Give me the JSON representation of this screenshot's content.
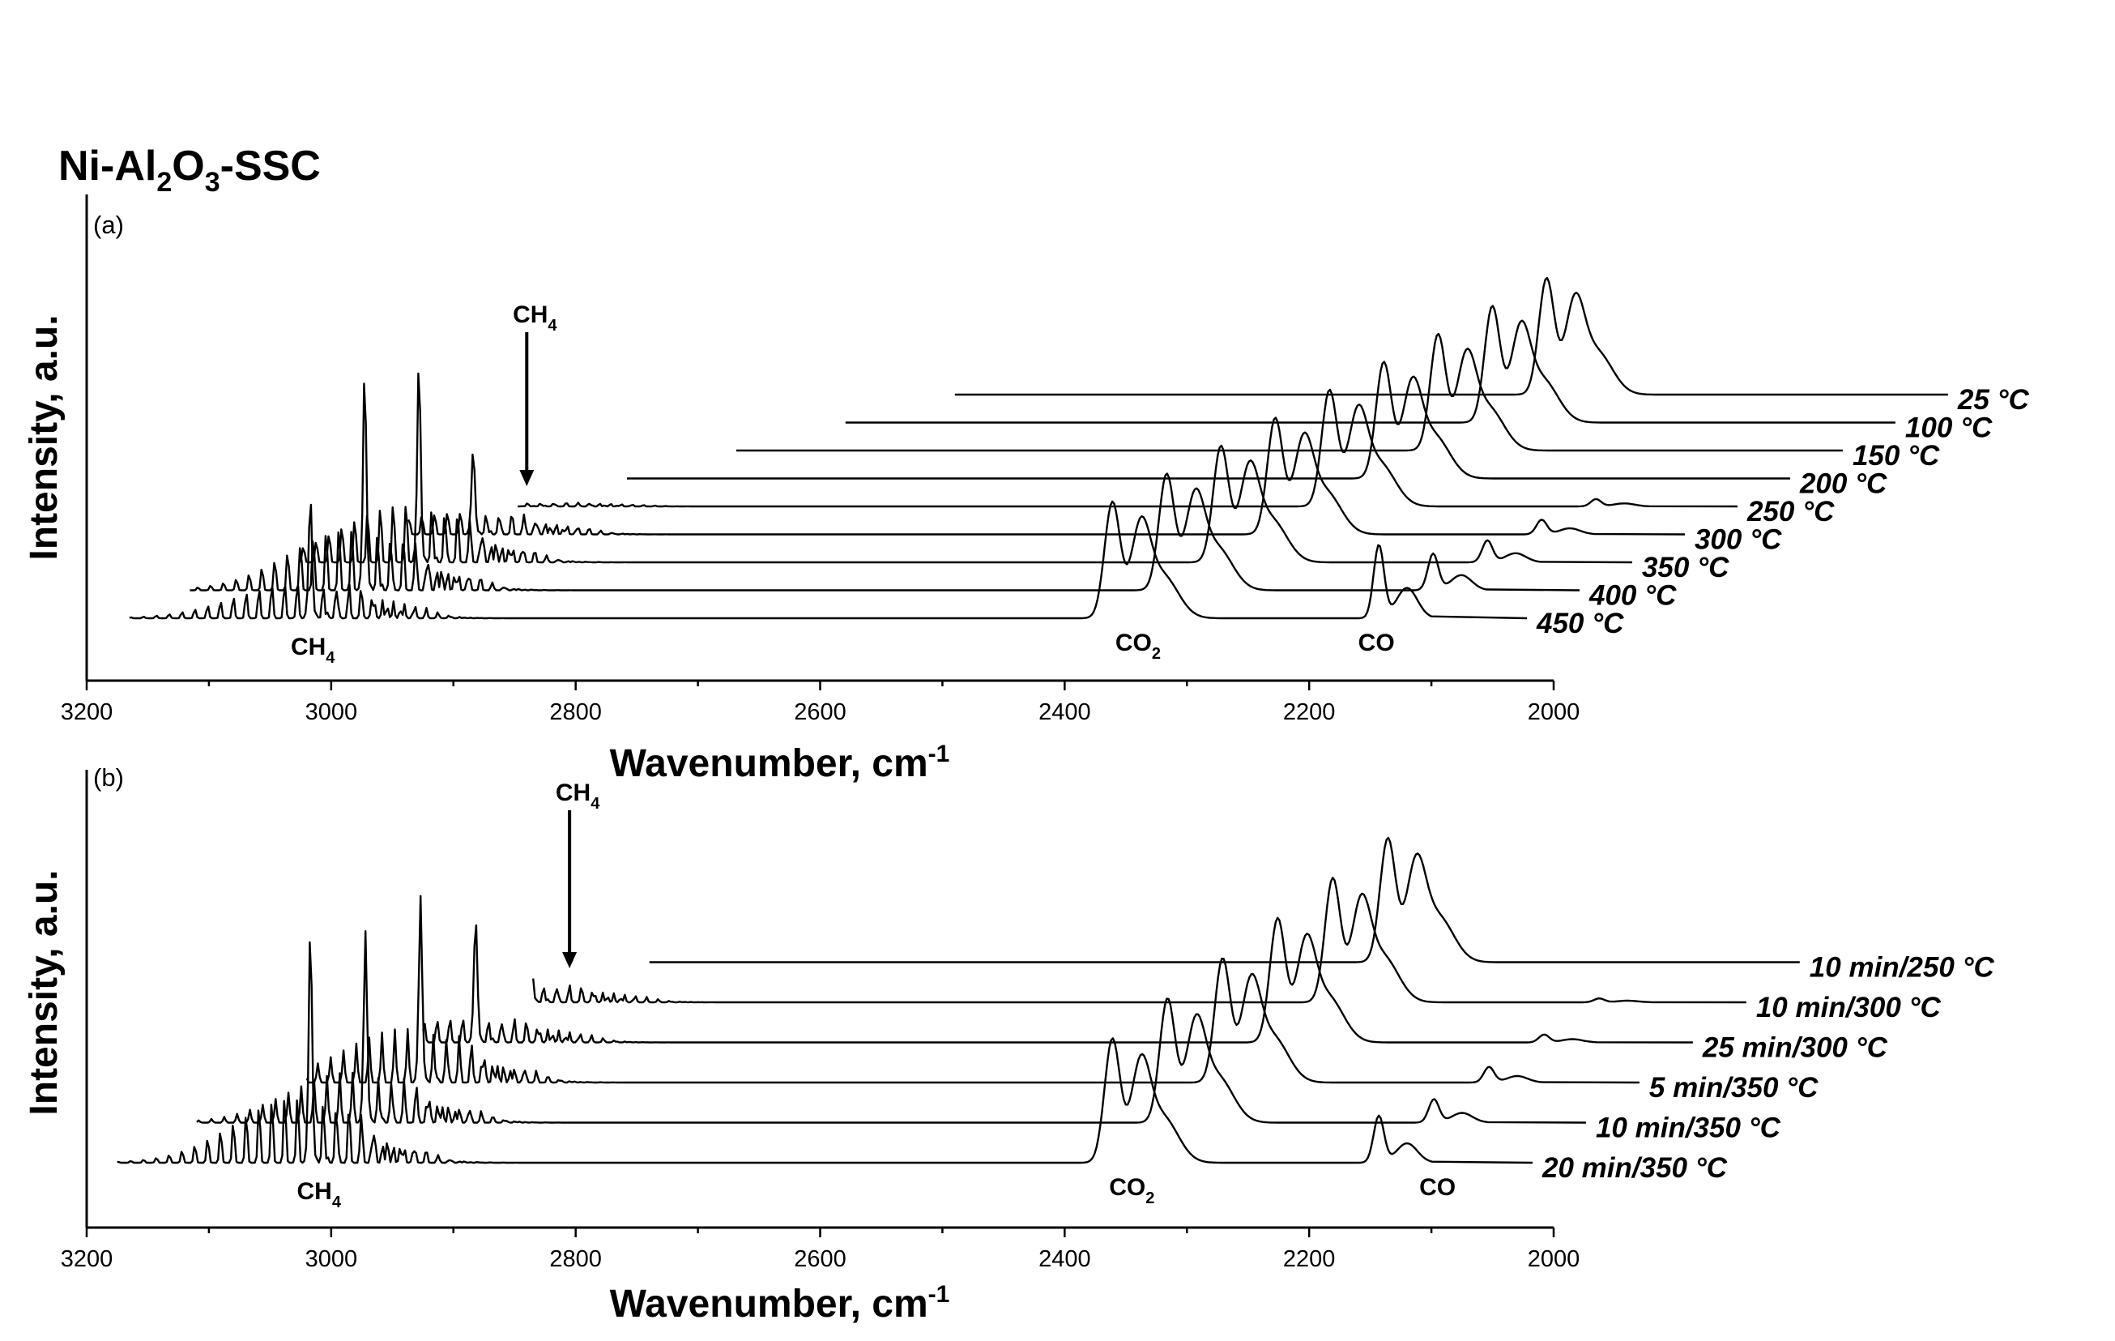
{
  "figure": {
    "title_prefix": "Ni-Al",
    "title_sub1": "2",
    "title_mid": "O",
    "title_sub2": "3",
    "title_suffix": "-SSC"
  },
  "chart_data": [
    {
      "type": "line",
      "panel": "(a)",
      "title": "Ni-Al2O3-SSC",
      "xlabel": "Wavenumber, cm",
      "xlabel_sup": "-1",
      "ylabel": "Intensity, a.u.",
      "xlim": [
        3200,
        2000
      ],
      "x_reversed": true,
      "x_ticks": [
        "3200",
        "3000",
        "2800",
        "2600",
        "2400",
        "2200",
        "2000"
      ],
      "stacked_waterfall": true,
      "series": [
        {
          "name": "450 °C",
          "label": "450 °C",
          "x_start": 3165,
          "x_end": 2100,
          "ch4_stretch": 0.55,
          "ch4_q": 0.55,
          "ch4_bend": 0.3,
          "co2": 1.0,
          "co": 1.0
        },
        {
          "name": "400 °C",
          "label": "400 °C",
          "x_start": 3160,
          "x_end": 2100,
          "ch4_stretch": 1.0,
          "ch4_q": 1.0,
          "ch4_bend": 0.35,
          "co2": 1.0,
          "co": 0.5
        },
        {
          "name": "350 °C",
          "label": "350 °C",
          "x_start": 3115,
          "x_end": 2100,
          "ch4_stretch": 0.95,
          "ch4_q": 0.9,
          "ch4_bend": 0.3,
          "co2": 1.0,
          "co": 0.3
        },
        {
          "name": "300 °C",
          "label": "300 °C",
          "x_start": 3070,
          "x_end": 2100,
          "ch4_stretch": 0.35,
          "ch4_q": 0.4,
          "ch4_bend": 0.2,
          "co2": 1.0,
          "co": 0.2
        },
        {
          "name": "250 °C",
          "label": "250 °C",
          "x_start": 3025,
          "x_end": 2100,
          "ch4_stretch": 0.05,
          "ch4_q": 0.0,
          "ch4_bend": 0.05,
          "co2": 1.0,
          "co": 0.1
        },
        {
          "name": "200 °C",
          "label": "200 °C",
          "x_start": 2980,
          "x_end": 2100,
          "ch4_stretch": 0.0,
          "ch4_q": 0.0,
          "ch4_bend": 0.0,
          "co2": 1.0,
          "co": 0.0
        },
        {
          "name": "150 °C",
          "label": "150 °C",
          "x_start": 2935,
          "x_end": 2100,
          "ch4_stretch": 0.0,
          "ch4_q": 0.0,
          "ch4_bend": 0.0,
          "co2": 1.0,
          "co": 0.0
        },
        {
          "name": "100 °C",
          "label": "100 °C",
          "x_start": 2890,
          "x_end": 2100,
          "ch4_stretch": 0.0,
          "ch4_q": 0.0,
          "ch4_bend": 0.0,
          "co2": 1.0,
          "co": 0.0
        },
        {
          "name": "25 °C",
          "label": "25 °C",
          "x_start": 2845,
          "x_end": 2100,
          "ch4_stretch": 0.0,
          "ch4_q": 0.0,
          "ch4_bend": 0.0,
          "co2": 1.0,
          "co": 0.0
        }
      ],
      "annotations": {
        "ch4_arrow": {
          "text": "CH",
          "sub": "4",
          "x": 2840
        },
        "ch4_bottom": {
          "text": "CH",
          "sub": "4",
          "x": 3015
        },
        "co2": {
          "text": "CO",
          "sub": "2",
          "x": 2340
        },
        "co": {
          "text": "CO",
          "sub": "",
          "x": 2145
        }
      }
    },
    {
      "type": "line",
      "panel": "(b)",
      "xlabel": "Wavenumber, cm",
      "xlabel_sup": "-1",
      "ylabel": "Intensity, a.u.",
      "xlim": [
        3200,
        2000
      ],
      "x_reversed": true,
      "x_ticks": [
        "3200",
        "3000",
        "2800",
        "2600",
        "2400",
        "2200",
        "2000"
      ],
      "stacked_waterfall": true,
      "series": [
        {
          "name": "20 min/350 °C",
          "label": "20 min/350 °C",
          "x_start": 3175,
          "x_end": 2100,
          "ch4_stretch": 1.0,
          "ch4_q": 1.0,
          "ch4_bend": 0.3,
          "co2": 1.0,
          "co": 0.6
        },
        {
          "name": "10 min/350 °C",
          "label": "10 min/350 °C",
          "x_start": 3155,
          "x_end": 2100,
          "ch4_stretch": 0.7,
          "ch4_q": 0.85,
          "ch4_bend": 0.3,
          "co2": 1.0,
          "co": 0.3
        },
        {
          "name": "5 min/350 °C",
          "label": "5 min/350 °C",
          "x_start": 3110,
          "x_end": 2100,
          "ch4_stretch": 0.75,
          "ch4_q": 0.8,
          "ch4_bend": 0.3,
          "co2": 1.0,
          "co": 0.2
        },
        {
          "name": "25 min/300 °C",
          "label": "25 min/300 °C",
          "x_start": 3060,
          "x_end": 2100,
          "ch4_stretch": 0.35,
          "ch4_q": 0.6,
          "ch4_bend": 0.2,
          "co2": 1.0,
          "co": 0.1
        },
        {
          "name": "10 min/300 °C",
          "label": "10 min/300 °C",
          "x_start": 3015,
          "x_end": 2100,
          "ch4_stretch": 0.25,
          "ch4_q": 0.3,
          "ch4_bend": 0.15,
          "co2": 1.0,
          "co": 0.05
        },
        {
          "name": "10 min/250 °C",
          "label": "10 min/250 °C",
          "x_start": 2965,
          "x_end": 2100,
          "ch4_stretch": 0.0,
          "ch4_q": 0.0,
          "ch4_bend": 0.0,
          "co2": 1.0,
          "co": 0.0
        }
      ],
      "annotations": {
        "ch4_arrow": {
          "text": "CH",
          "sub": "4",
          "x": 2805
        },
        "ch4_bottom": {
          "text": "CH",
          "sub": "4",
          "x": 3010
        },
        "co2": {
          "text": "CO",
          "sub": "2",
          "x": 2345
        },
        "co": {
          "text": "CO",
          "sub": "",
          "x": 2095
        }
      }
    }
  ]
}
